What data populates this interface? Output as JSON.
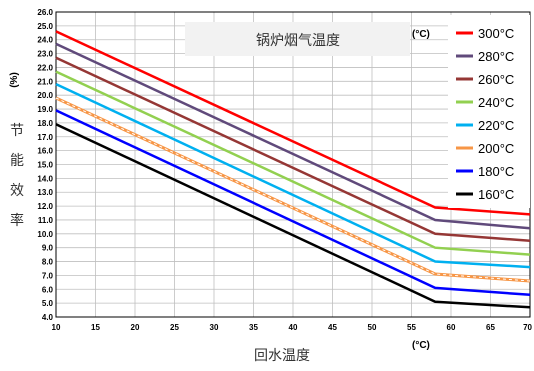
{
  "chart_data": {
    "type": "line",
    "title": "锅炉烟气温度",
    "title_unit": "(°C)",
    "xlabel": "回水温度",
    "x_unit": "(°C)",
    "ylabel": "节能效率",
    "y_unit": "(%)",
    "xlim": [
      10,
      70
    ],
    "ylim": [
      4.0,
      26.0
    ],
    "x_ticks": [
      10,
      15,
      20,
      25,
      30,
      35,
      40,
      45,
      50,
      55,
      60,
      65,
      70
    ],
    "x_tick_labels": [
      "10",
      "15",
      "20",
      "25",
      "30",
      "35",
      "40",
      "45",
      "50",
      "55",
      "60",
      "65",
      "70"
    ],
    "y_ticks": [
      4.0,
      5.0,
      6.0,
      7.0,
      8.0,
      9.0,
      10.0,
      11.0,
      12.0,
      13.0,
      14.0,
      15.0,
      16.0,
      17.0,
      18.0,
      19.0,
      20.0,
      21.0,
      22.0,
      23.0,
      24.0,
      25.0,
      26.0
    ],
    "y_tick_labels": [
      "4.0",
      "5.0",
      "6.0",
      "7.0",
      "8.0",
      "9.0",
      "10.0",
      "11.0",
      "12.0",
      "13.0",
      "14.0",
      "15.0",
      "16.0",
      "17.0",
      "18.0",
      "19.0",
      "20.0",
      "21.0",
      "22.0",
      "23.0",
      "24.0",
      "25.0",
      "26.0"
    ],
    "grid": true,
    "legend_position": "top-right",
    "series": [
      {
        "name": "300°C",
        "color": "#ff0000",
        "x": [
          10,
          58,
          70
        ],
        "y": [
          24.6,
          11.9,
          11.4
        ]
      },
      {
        "name": "280°C",
        "color": "#604a7b",
        "x": [
          10,
          58,
          70
        ],
        "y": [
          23.7,
          11.0,
          10.4
        ]
      },
      {
        "name": "260°C",
        "color": "#953735",
        "x": [
          10,
          58,
          70
        ],
        "y": [
          22.7,
          10.0,
          9.5
        ]
      },
      {
        "name": "240°C",
        "color": "#92d050",
        "x": [
          10,
          58,
          70
        ],
        "y": [
          21.7,
          9.0,
          8.5
        ]
      },
      {
        "name": "220°C",
        "color": "#00b0f0",
        "x": [
          10,
          58,
          70
        ],
        "y": [
          20.8,
          8.0,
          7.6
        ]
      },
      {
        "name": "200°C",
        "color": "#f79646",
        "dashed": true,
        "x": [
          10,
          58,
          70
        ],
        "y": [
          19.8,
          7.1,
          6.6
        ]
      },
      {
        "name": "180°C",
        "color": "#0000ff",
        "x": [
          10,
          58,
          70
        ],
        "y": [
          18.9,
          6.1,
          5.6
        ]
      },
      {
        "name": "160°C",
        "color": "#000000",
        "x": [
          10,
          58,
          70
        ],
        "y": [
          17.9,
          5.1,
          4.7
        ]
      }
    ]
  }
}
